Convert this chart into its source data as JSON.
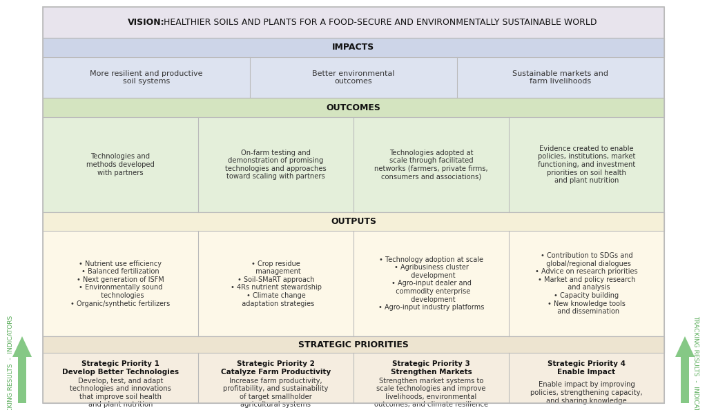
{
  "fig_width": 10.24,
  "fig_height": 5.95,
  "bg_color": "#ffffff",
  "vision_bg": "#e8e4ed",
  "impacts_bg": "#cdd5e8",
  "impacts_content_bg": "#dde3f0",
  "outcomes_bg": "#d4e4c0",
  "outcomes_content_bg": "#e4efda",
  "outputs_bg": "#f5f0d8",
  "outputs_content_bg": "#fdf8e8",
  "priorities_bg": "#ede4d0",
  "priorities_content_bg": "#f5ede0",
  "arrow_color": "#85c885",
  "divider_color": "#bbbbbb",
  "header_text_color": "#111111",
  "body_text_color": "#333333",
  "tracking_text_left": "TRACKING RESULTS  -  INDICATORS",
  "tracking_text_right": "TRACKING RESULTS  -  INDICATORS",
  "tracking_color": "#55aa55",
  "vision_bold": "VISION:",
  "vision_rest": " HEALTHIER SOILS AND PLANTS FOR A FOOD-SECURE AND ENVIRONMENTALLY SUSTAINABLE WORLD",
  "impacts_header": "IMPACTS",
  "impacts_items": [
    "More resilient and productive\nsoil systems",
    "Better environmental\noutcomes",
    "Sustainable markets and\nfarm livelihoods"
  ],
  "outcomes_header": "OUTCOMES",
  "outcomes_items": [
    "Technologies and\nmethods developed\nwith partners",
    "On-farm testing and\ndemonstration of promising\ntechnologies and approaches\ntoward scaling with partners",
    "Technologies adopted at\nscale through facilitated\nnetworks (farmers, private firms,\nconsumers and associations)",
    "Evidence created to enable\npolicies, institutions, market\nfunctioning, and investment\npriorities on soil health\nand plant nutrition"
  ],
  "outputs_header": "OUTPUTS",
  "outputs_items": [
    "• Nutrient use efficiency\n• Balanced fertilization\n• Next generation of ISFM\n• Environmentally sound\n  technologies\n• Organic/synthetic fertilizers",
    "• Crop residue\n  management\n• Soil-SMaRT approach\n• 4Rs nutrient stewardship\n• Climate change\n  adaptation strategies",
    "• Technology adoption at scale\n• Agribusiness cluster\n  development\n• Agro-input dealer and\n  commodity enterprise\n  development\n• Agro-input industry platforms",
    "• Contribution to SDGs and\n  global/regional dialogues\n• Advice on research priorities\n• Market and policy research\n  and analysis\n• Capacity building\n• New knowledge tools\n  and dissemination"
  ],
  "priorities_header": "STRATEGIC PRIORITIES",
  "priorities_titles": [
    "Strategic Priority 1\nDevelop Better Technologies",
    "Strategic Priority 2\nCatalyze Farm Productivity",
    "Strategic Priority 3\nStrengthen Markets",
    "Strategic Priority 4\nEnable Impact"
  ],
  "priorities_texts": [
    "Develop, test, and adapt\ntechnologies and innovations\nthat improve soil health\nand plant nutrition",
    "Increase farm productivity,\nprofitability, and sustainability\nof target smallholder\nagricultural systems",
    "Strengthen market systems to\nscale technologies and improve\nlivelihoods, environmental\noutcomes, and climate resilience",
    "Enable impact by improving\npolicies, strengthening capacity,\nand sharing knowledge"
  ]
}
